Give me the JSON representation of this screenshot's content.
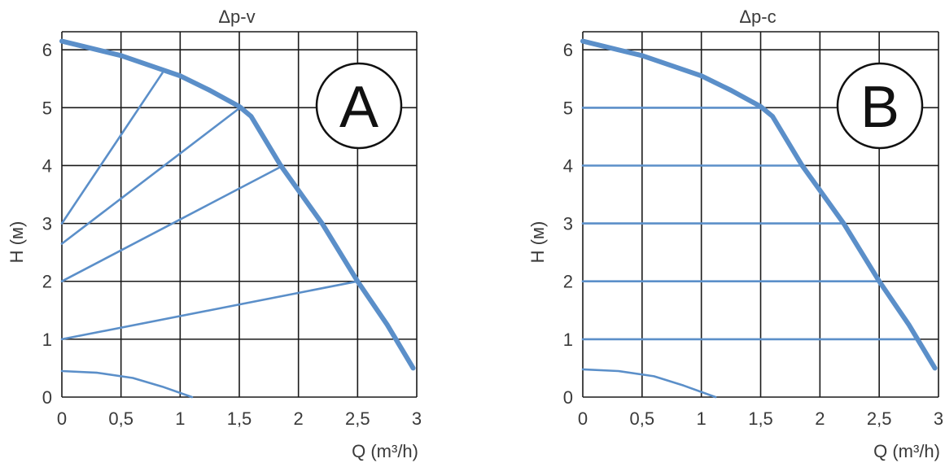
{
  "colors": {
    "curve": "#5b8fc9",
    "grid": "#1a1a1a",
    "text": "#3a3a3a",
    "badge_stroke": "#111111"
  },
  "chart_data": [
    {
      "type": "line",
      "title": "Δp-v",
      "badge": "A",
      "xlabel": "Q (m³/h)",
      "ylabel": "H (м)",
      "xlim": [
        0,
        3
      ],
      "ylim": [
        0,
        6.2
      ],
      "x_ticks": [
        0,
        0.5,
        1,
        1.5,
        2,
        2.5,
        3
      ],
      "x_tick_labels": [
        "0",
        "0,5",
        "1",
        "1,5",
        "2",
        "2,5",
        "3"
      ],
      "y_ticks": [
        0,
        1,
        2,
        3,
        4,
        5,
        6
      ],
      "y_tick_labels": [
        "0",
        "1",
        "2",
        "3",
        "4",
        "5",
        "6"
      ],
      "grid": true,
      "series": [
        {
          "role": "max-curve",
          "points": [
            [
              0,
              6.15
            ],
            [
              0.5,
              5.9
            ],
            [
              1,
              5.55
            ],
            [
              1.25,
              5.3
            ],
            [
              1.5,
              5.02
            ],
            [
              1.6,
              4.85
            ],
            [
              1.85,
              4.0
            ],
            [
              2.2,
              3.0
            ],
            [
              2.5,
              2.0
            ],
            [
              2.75,
              1.25
            ],
            [
              2.97,
              0.5
            ]
          ]
        },
        {
          "role": "control-line",
          "points": [
            [
              0,
              3.0
            ],
            [
              0.85,
              5.6
            ]
          ]
        },
        {
          "role": "control-line",
          "points": [
            [
              0,
              2.65
            ],
            [
              1.52,
              5.02
            ]
          ]
        },
        {
          "role": "control-line",
          "points": [
            [
              0,
              2.0
            ],
            [
              1.87,
              4.0
            ]
          ]
        },
        {
          "role": "control-line",
          "points": [
            [
              0,
              1.0
            ],
            [
              2.5,
              2.0
            ]
          ]
        },
        {
          "role": "min-curve",
          "points": [
            [
              0,
              0.45
            ],
            [
              0.3,
              0.42
            ],
            [
              0.6,
              0.33
            ],
            [
              0.85,
              0.18
            ],
            [
              1.1,
              0.0
            ]
          ]
        }
      ]
    },
    {
      "type": "line",
      "title": "Δp-c",
      "badge": "B",
      "xlabel": "Q (m³/h)",
      "ylabel": "H (м)",
      "xlim": [
        0,
        3
      ],
      "ylim": [
        0,
        6.2
      ],
      "x_ticks": [
        0,
        0.5,
        1,
        1.5,
        2,
        2.5,
        3
      ],
      "x_tick_labels": [
        "0",
        "0,5",
        "1",
        "1,5",
        "2",
        "2,5",
        "3"
      ],
      "y_ticks": [
        0,
        1,
        2,
        3,
        4,
        5,
        6
      ],
      "y_tick_labels": [
        "0",
        "1",
        "2",
        "3",
        "4",
        "5",
        "6"
      ],
      "grid": true,
      "series": [
        {
          "role": "max-curve",
          "points": [
            [
              0,
              6.15
            ],
            [
              0.5,
              5.9
            ],
            [
              1,
              5.55
            ],
            [
              1.25,
              5.3
            ],
            [
              1.5,
              5.02
            ],
            [
              1.6,
              4.85
            ],
            [
              1.85,
              4.0
            ],
            [
              2.2,
              3.0
            ],
            [
              2.5,
              2.0
            ],
            [
              2.75,
              1.25
            ],
            [
              2.97,
              0.5
            ]
          ]
        },
        {
          "role": "control-line",
          "points": [
            [
              0,
              5.0
            ],
            [
              1.52,
              5.0
            ]
          ]
        },
        {
          "role": "control-line",
          "points": [
            [
              0,
              4.0
            ],
            [
              1.87,
              4.0
            ]
          ]
        },
        {
          "role": "control-line",
          "points": [
            [
              0,
              3.0
            ],
            [
              2.2,
              3.0
            ]
          ]
        },
        {
          "role": "control-line",
          "points": [
            [
              0,
              2.0
            ],
            [
              2.5,
              2.0
            ]
          ]
        },
        {
          "role": "control-line",
          "points": [
            [
              0,
              1.0
            ],
            [
              2.83,
              1.0
            ]
          ]
        },
        {
          "role": "min-curve",
          "points": [
            [
              0,
              0.48
            ],
            [
              0.3,
              0.45
            ],
            [
              0.6,
              0.36
            ],
            [
              0.85,
              0.2
            ],
            [
              1.12,
              0.0
            ]
          ]
        }
      ]
    }
  ]
}
